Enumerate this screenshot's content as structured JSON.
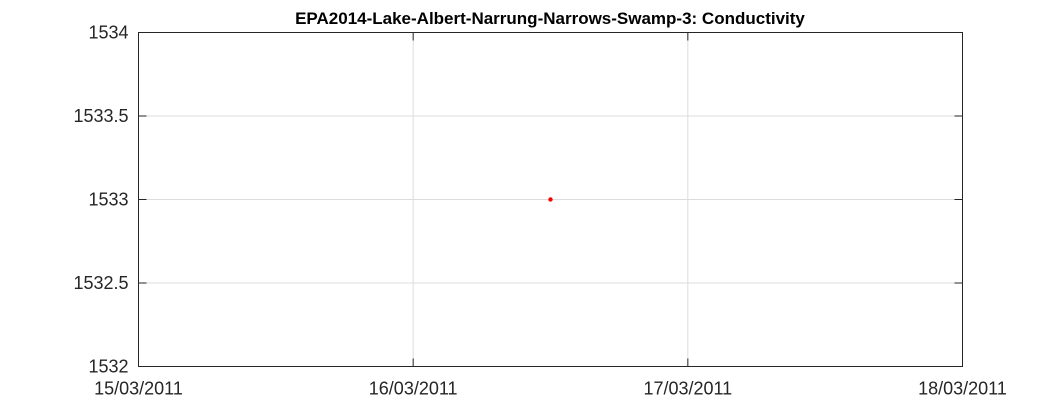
{
  "chart_data": {
    "type": "scatter",
    "title": "EPA2014-Lake-Albert-Narrung-Narrows-Swamp-3: Conductivity",
    "xlabel": "",
    "ylabel": "",
    "x_type": "date",
    "xlim": [
      "15/03/2011",
      "18/03/2011"
    ],
    "ylim": [
      1532,
      1534
    ],
    "x_ticks": [
      "15/03/2011",
      "16/03/2011",
      "17/03/2011",
      "18/03/2011"
    ],
    "y_ticks": [
      "1532",
      "1532.5",
      "1533",
      "1533.5",
      "1534"
    ],
    "grid": true,
    "series": [
      {
        "color": "#ff0000",
        "points": [
          {
            "x": "16/03/2011 12:00",
            "y": 1533
          }
        ]
      }
    ]
  }
}
